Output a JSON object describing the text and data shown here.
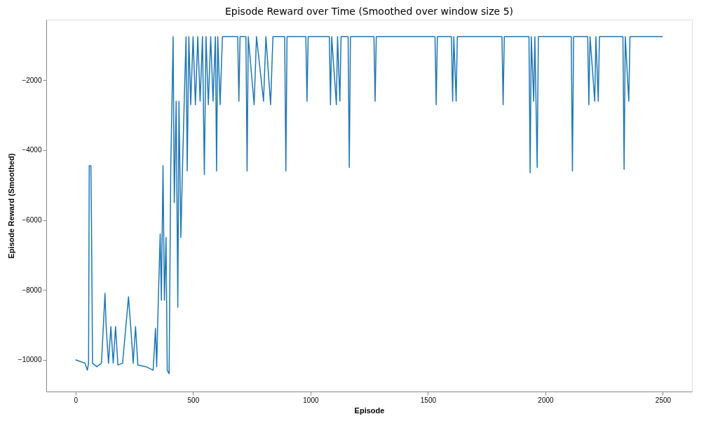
{
  "chart_data": {
    "type": "line",
    "title": "Episode Reward over Time (Smoothed over window size 5)",
    "xlabel": "Episode",
    "ylabel": "Episode Reward (Smoothed)",
    "xlim": [
      -125,
      2624
    ],
    "xticks": [
      0,
      500,
      1000,
      1500,
      2000,
      2500
    ],
    "ylim": [
      -10910,
      -265
    ],
    "yticks": [
      -10000,
      -8000,
      -6000,
      -4000,
      -2000
    ],
    "grid": false,
    "line_style": "solid",
    "marker": "none",
    "series": [
      {
        "color": "#1f77b4",
        "x": [
          0,
          20,
          40,
          50,
          55,
          58,
          65,
          68,
          72,
          90,
          110,
          125,
          130,
          140,
          150,
          160,
          170,
          180,
          200,
          225,
          235,
          245,
          255,
          265,
          300,
          330,
          340,
          345,
          352,
          360,
          365,
          372,
          378,
          385,
          390,
          398,
          405,
          410,
          415,
          420,
          428,
          435,
          440,
          448,
          455,
          462,
          470,
          475,
          482,
          490,
          500,
          510,
          520,
          530,
          540,
          548,
          555,
          565,
          575,
          585,
          595,
          600,
          605,
          615,
          625,
          690,
          695,
          700,
          725,
          730,
          735,
          760,
          770,
          800,
          810,
          830,
          840,
          890,
          895,
          900,
          980,
          985,
          990,
          1080,
          1085,
          1090,
          1110,
          1115,
          1125,
          1130,
          1160,
          1165,
          1170,
          1270,
          1275,
          1280,
          1530,
          1535,
          1540,
          1600,
          1605,
          1610,
          1620,
          1625,
          1815,
          1820,
          1825,
          1930,
          1935,
          1940,
          1950,
          1955,
          1965,
          1970,
          2110,
          2115,
          2120,
          2180,
          2185,
          2190,
          2210,
          2215,
          2225,
          2230,
          2330,
          2335,
          2340,
          2355,
          2360,
          2499
        ],
        "values": [
          -10000,
          -10050,
          -10100,
          -10300,
          -10100,
          -4450,
          -4450,
          -6500,
          -10100,
          -10200,
          -10100,
          -8100,
          -9050,
          -10100,
          -9050,
          -10100,
          -9050,
          -10150,
          -10100,
          -8200,
          -9100,
          -10100,
          -9050,
          -10150,
          -10200,
          -10300,
          -9100,
          -10200,
          -8300,
          -6400,
          -8300,
          -4450,
          -8300,
          -6500,
          -10300,
          -10400,
          -4500,
          -2700,
          -750,
          -5500,
          -2600,
          -8500,
          -2600,
          -6500,
          -4500,
          -2700,
          -750,
          -4600,
          -750,
          -2700,
          -750,
          -2700,
          -750,
          -2600,
          -750,
          -4700,
          -750,
          -2700,
          -750,
          -2600,
          -750,
          -4600,
          -750,
          -2700,
          -750,
          -750,
          -2600,
          -750,
          -750,
          -4600,
          -750,
          -2700,
          -750,
          -2600,
          -750,
          -2700,
          -750,
          -750,
          -4600,
          -750,
          -750,
          -2600,
          -750,
          -750,
          -2700,
          -750,
          -2700,
          -750,
          -2600,
          -750,
          -750,
          -4500,
          -750,
          -750,
          -2600,
          -750,
          -750,
          -2700,
          -750,
          -750,
          -2600,
          -750,
          -2600,
          -750,
          -750,
          -2700,
          -750,
          -750,
          -4650,
          -750,
          -2600,
          -750,
          -4500,
          -750,
          -750,
          -4600,
          -750,
          -750,
          -2700,
          -750,
          -2600,
          -750,
          -2600,
          -750,
          -750,
          -4550,
          -750,
          -2600,
          -750,
          -750
        ]
      }
    ]
  }
}
